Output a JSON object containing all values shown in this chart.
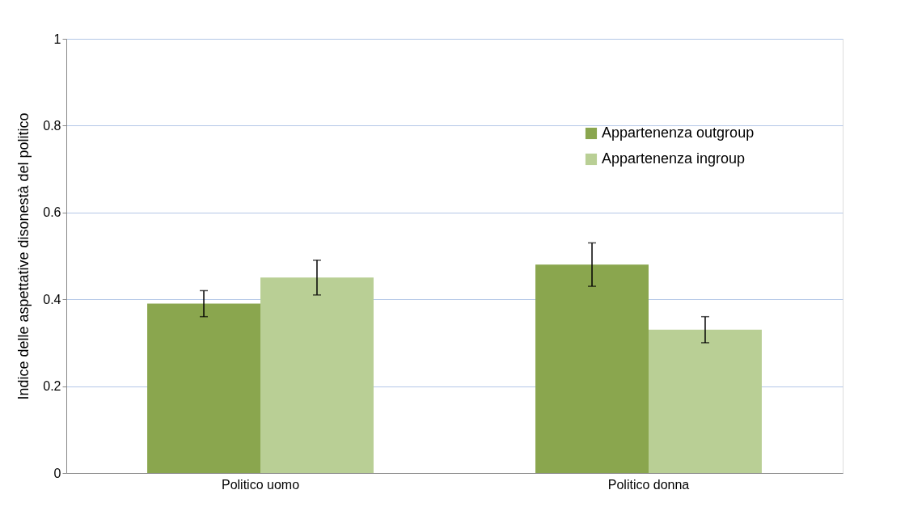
{
  "chart_data": {
    "type": "bar",
    "ylabel": "Indice delle aspettative disonestà del politico",
    "categories": [
      "Politico uomo",
      "Politico donna"
    ],
    "series": [
      {
        "name": "Appartenenza outgroup",
        "color": "#8aa64e",
        "values": [
          0.39,
          0.48
        ],
        "errors": [
          [
            0.36,
            0.42
          ],
          [
            0.43,
            0.53
          ]
        ]
      },
      {
        "name": "Appartenenza ingroup",
        "color": "#b9cf95",
        "values": [
          0.45,
          0.33
        ],
        "errors": [
          [
            0.41,
            0.49
          ],
          [
            0.3,
            0.36
          ]
        ]
      }
    ],
    "ylim": [
      0,
      1
    ],
    "yticks": [
      {
        "value": 0,
        "label": "0"
      },
      0.2,
      0.4,
      0.6,
      0.8,
      {
        "value": 1,
        "label": "1"
      }
    ],
    "grid": "y",
    "legend": "top right"
  }
}
